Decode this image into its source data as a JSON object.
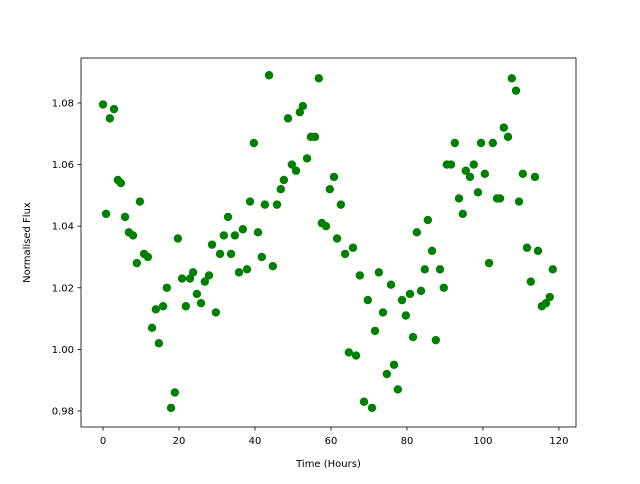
{
  "chart_data": {
    "type": "scatter",
    "title": "",
    "xlabel": "Time (Hours)",
    "ylabel": "Normalised Flux",
    "xlim": [
      -5.8,
      124.5
    ],
    "ylim": [
      0.9748,
      1.0946
    ],
    "xticks": [
      0,
      20,
      40,
      60,
      80,
      100,
      120
    ],
    "xtick_labels": [
      "0",
      "20",
      "40",
      "60",
      "80",
      "100",
      "120"
    ],
    "yticks": [
      0.98,
      1.0,
      1.02,
      1.04,
      1.06,
      1.08
    ],
    "ytick_labels": [
      "0.98",
      "1.00",
      "1.02",
      "1.04",
      "1.06",
      "1.08"
    ],
    "grid": false,
    "marker_color": "#008000",
    "x": [
      0,
      0.8,
      1.8,
      2.9,
      3.9,
      4.7,
      5.8,
      6.8,
      7.9,
      8.9,
      9.7,
      10.8,
      11.8,
      12.9,
      13.9,
      14.7,
      15.8,
      16.8,
      17.9,
      18.9,
      19.7,
      20.8,
      21.8,
      22.9,
      23.7,
      24.7,
      25.8,
      26.8,
      27.9,
      28.7,
      29.7,
      30.8,
      31.8,
      32.9,
      33.7,
      34.7,
      35.8,
      36.8,
      37.9,
      38.7,
      39.7,
      40.8,
      41.8,
      42.6,
      43.7,
      44.7,
      45.8,
      46.8,
      47.6,
      48.7,
      49.7,
      50.8,
      51.8,
      52.6,
      53.7,
      54.7,
      55.8,
      56.8,
      57.6,
      58.7,
      59.7,
      60.8,
      61.6,
      62.6,
      63.7,
      64.7,
      65.8,
      66.6,
      67.6,
      68.7,
      69.7,
      70.8,
      71.6,
      72.6,
      73.7,
      74.7,
      75.8,
      76.6,
      77.6,
      78.7,
      79.7,
      80.8,
      81.6,
      82.6,
      83.7,
      84.7,
      85.5,
      86.6,
      87.6,
      88.7,
      89.7,
      90.5,
      91.6,
      92.6,
      93.7,
      94.7,
      95.5,
      96.6,
      97.6,
      98.7,
      99.5,
      100.5,
      101.6,
      102.6,
      103.7,
      104.5,
      105.5,
      106.6,
      107.6,
      108.7,
      109.5,
      110.5,
      111.6,
      112.6,
      113.7,
      114.5,
      115.5,
      116.6,
      117.6,
      118.4
    ],
    "y": [
      1.0795,
      1.044,
      1.075,
      1.078,
      1.055,
      1.054,
      1.043,
      1.038,
      1.037,
      1.028,
      1.048,
      1.031,
      1.03,
      1.007,
      1.013,
      1.002,
      1.014,
      1.02,
      0.981,
      0.986,
      1.036,
      1.023,
      1.014,
      1.023,
      1.025,
      1.018,
      1.015,
      1.022,
      1.024,
      1.034,
      1.012,
      1.031,
      1.037,
      1.043,
      1.031,
      1.037,
      1.025,
      1.039,
      1.026,
      1.048,
      1.067,
      1.038,
      1.03,
      1.047,
      1.089,
      1.027,
      1.047,
      1.052,
      1.055,
      1.075,
      1.06,
      1.058,
      1.077,
      1.079,
      1.062,
      1.069,
      1.069,
      1.088,
      1.041,
      1.04,
      1.052,
      1.056,
      1.036,
      1.047,
      1.031,
      0.999,
      1.033,
      0.998,
      1.024,
      0.983,
      1.016,
      0.981,
      1.006,
      1.025,
      1.012,
      0.992,
      1.021,
      0.995,
      0.987,
      1.016,
      1.011,
      1.018,
      1.004,
      1.038,
      1.019,
      1.026,
      1.042,
      1.032,
      1.003,
      1.026,
      1.02,
      1.06,
      1.06,
      1.067,
      1.049,
      1.044,
      1.058,
      1.056,
      1.06,
      1.051,
      1.067,
      1.057,
      1.028,
      1.067,
      1.049,
      1.049,
      1.072,
      1.069,
      1.088,
      1.084,
      1.048,
      1.057,
      1.033,
      1.022,
      1.056,
      1.032,
      1.014,
      1.015,
      1.017,
      1.026
    ]
  }
}
